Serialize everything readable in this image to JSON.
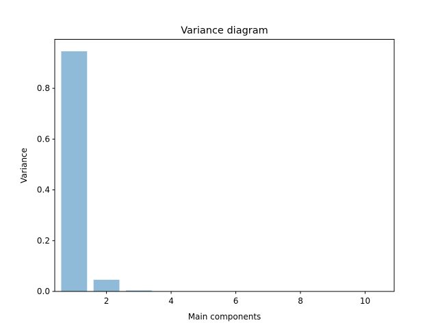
{
  "chart_data": {
    "type": "bar",
    "title": "Variance diagram",
    "xlabel": "Main components",
    "ylabel": "Variance",
    "x": [
      1,
      2,
      3,
      4,
      5,
      6,
      7,
      8,
      9,
      10
    ],
    "values": [
      0.946,
      0.046,
      0.004,
      0.001,
      0.0008,
      0.0005,
      0.0003,
      0.0002,
      0.0001,
      5e-05
    ],
    "xlim": [
      0.4,
      10.9
    ],
    "ylim": [
      0,
      0.993
    ],
    "xticks": [
      2,
      4,
      6,
      8,
      10
    ],
    "yticks": [
      0.0,
      0.2,
      0.4,
      0.6,
      0.8
    ],
    "bar_color": "#8fbbd9",
    "grid": false,
    "legend": false
  }
}
